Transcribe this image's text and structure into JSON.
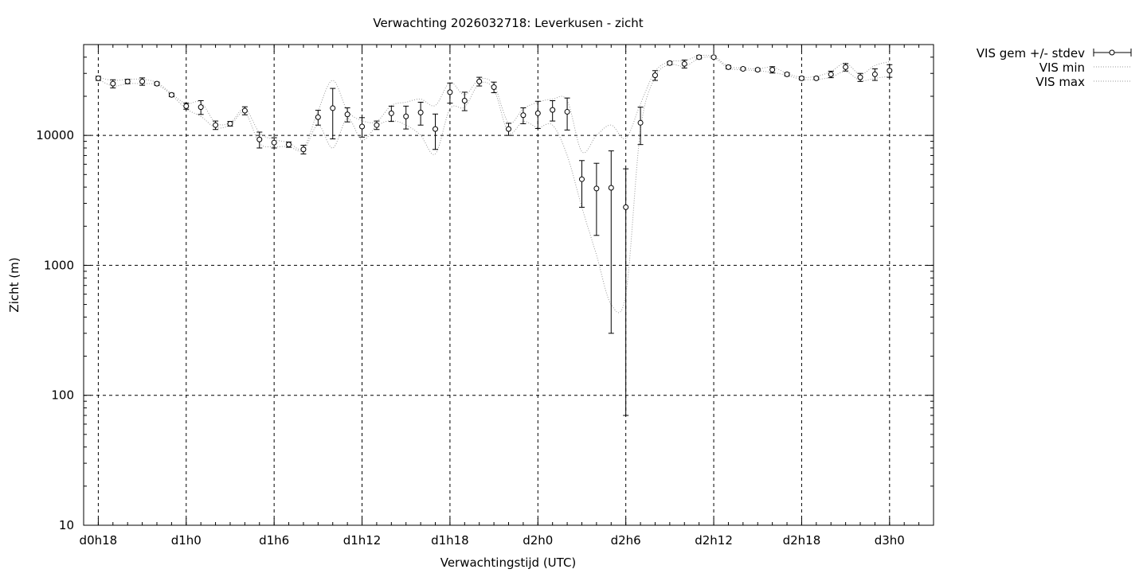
{
  "chart_data": {
    "type": "line",
    "title": "Verwachting 2026032718: Leverkusen - zicht",
    "xlabel": "Verwachtingstijd (UTC)",
    "ylabel": "Zicht (m)",
    "y_scale": "log",
    "ylim": [
      10,
      50000
    ],
    "yticks": [
      10,
      100,
      1000,
      10000
    ],
    "x_hours_range": [
      -1,
      57
    ],
    "xticks": [
      {
        "label": "d0h18",
        "hour": 0
      },
      {
        "label": "d1h0",
        "hour": 6
      },
      {
        "label": "d1h6",
        "hour": 12
      },
      {
        "label": "d1h12",
        "hour": 18
      },
      {
        "label": "d1h18",
        "hour": 24
      },
      {
        "label": "d2h0",
        "hour": 30
      },
      {
        "label": "d2h6",
        "hour": 36
      },
      {
        "label": "d2h12",
        "hour": 42
      },
      {
        "label": "d2h18",
        "hour": 48
      },
      {
        "label": "d3h0",
        "hour": 54
      }
    ],
    "grid": true,
    "legend_position": "outside-top-right",
    "legend": {
      "mean": "VIS gem +/- stdev",
      "min": "VIS min",
      "max": "VIS max"
    },
    "hours": [
      0,
      1,
      2,
      3,
      4,
      5,
      6,
      7,
      8,
      9,
      10,
      11,
      12,
      13,
      14,
      15,
      16,
      17,
      18,
      19,
      20,
      21,
      22,
      23,
      24,
      25,
      26,
      27,
      28,
      29,
      30,
      31,
      32,
      33,
      34,
      35,
      36,
      37,
      38,
      39,
      40,
      41,
      42,
      43,
      44,
      45,
      46,
      47,
      48,
      49,
      50,
      51,
      52,
      53,
      54
    ],
    "series": [
      {
        "name": "VIS gem +/- stdev",
        "mean": [
          27500,
          25000,
          26000,
          26000,
          25000,
          20500,
          16800,
          16500,
          12000,
          12300,
          15500,
          9300,
          8800,
          8500,
          7800,
          13800,
          16200,
          14500,
          11700,
          12000,
          14800,
          14000,
          15000,
          11200,
          21500,
          18500,
          26000,
          23500,
          11200,
          14300,
          14800,
          15700,
          15200,
          4600,
          3900,
          3950,
          2800,
          12500,
          29000,
          36000,
          35500,
          40000,
          40000,
          33500,
          32500,
          32000,
          32000,
          29500,
          27500,
          27500,
          29500,
          33500,
          28000,
          29500,
          31500
        ],
        "stdev": [
          1000,
          1800,
          1000,
          1700,
          700,
          600,
          900,
          2000,
          900,
          500,
          1100,
          1300,
          800,
          400,
          600,
          1800,
          6800,
          1800,
          2000,
          900,
          2000,
          2800,
          3000,
          3400,
          3800,
          3000,
          2000,
          2200,
          1200,
          2000,
          3500,
          2800,
          4200,
          1800,
          2200,
          3650,
          2730,
          4000,
          2500,
          1000,
          2500,
          1200,
          700,
          1000,
          700,
          700,
          1800,
          800,
          800,
          600,
          1700,
          2200,
          2000,
          3000,
          3500
        ]
      },
      {
        "name": "VIS min",
        "values": [
          27000,
          24000,
          25000,
          25000,
          24500,
          20500,
          16000,
          14000,
          11500,
          12000,
          15000,
          8700,
          8200,
          8200,
          7700,
          12000,
          8000,
          13500,
          9200,
          11800,
          13000,
          12000,
          10000,
          7200,
          16000,
          16500,
          25000,
          22500,
          10500,
          12800,
          11500,
          12000,
          7000,
          2800,
          1200,
          500,
          600,
          11000,
          28000,
          35000,
          34000,
          39000,
          39500,
          33000,
          32000,
          31500,
          30500,
          29000,
          27000,
          27000,
          28000,
          31000,
          26500,
          27500,
          28500
        ]
      },
      {
        "name": "VIS max",
        "values": [
          28000,
          26500,
          27000,
          27000,
          25500,
          21000,
          17500,
          18000,
          12500,
          12500,
          16000,
          10500,
          9300,
          8800,
          8000,
          15500,
          26500,
          15500,
          13000,
          12800,
          17000,
          18000,
          19000,
          17000,
          25500,
          20500,
          27000,
          24500,
          12500,
          16000,
          18000,
          19000,
          18500,
          7500,
          10000,
          12000,
          9500,
          17500,
          31000,
          37000,
          37500,
          41000,
          40500,
          34000,
          33000,
          32500,
          33500,
          30000,
          28000,
          28500,
          31000,
          36000,
          29500,
          34500,
          37000
        ]
      }
    ]
  }
}
